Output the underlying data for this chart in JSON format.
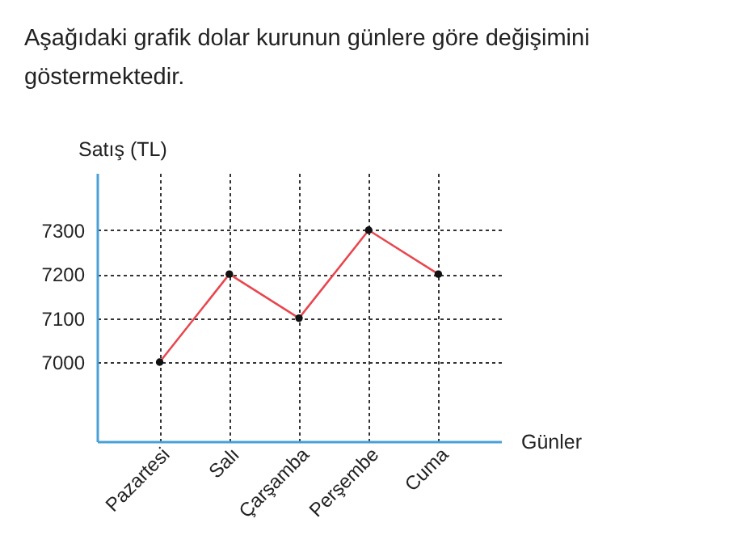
{
  "chart_data": {
    "type": "line",
    "title": "Aşağıdaki grafik dolar kurunun günlere göre değişimini göstermektedir.",
    "xlabel": "Günler",
    "ylabel": "Satış (TL)",
    "categories": [
      "Pazartesi",
      "Salı",
      "Çarşamba",
      "Perşembe",
      "Cuma"
    ],
    "series": [
      {
        "color": "#e8474f",
        "values": [
          7000,
          7200,
          7100,
          7300,
          7200
        ]
      }
    ],
    "ylim": [
      6820,
      7430
    ],
    "yticks": [
      7000,
      7100,
      7200,
      7300
    ],
    "grid": true,
    "marker": "circle",
    "line_style": "solid"
  }
}
